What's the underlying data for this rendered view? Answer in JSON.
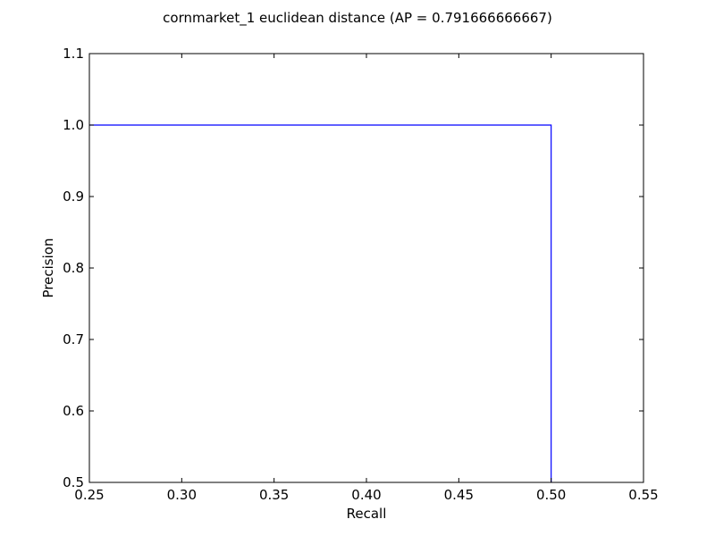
{
  "chart_data": {
    "type": "line",
    "title": "cornmarket_1 euclidean distance  (AP = 0.791666666667)",
    "xlabel": "Recall",
    "ylabel": "Precision",
    "xlim": [
      0.25,
      0.55
    ],
    "ylim": [
      0.5,
      1.1
    ],
    "xticks": [
      "0.25",
      "0.30",
      "0.35",
      "0.40",
      "0.45",
      "0.50",
      "0.55"
    ],
    "yticks": [
      "0.5",
      "0.6",
      "0.7",
      "0.8",
      "0.9",
      "1.0",
      "1.1"
    ],
    "grid": false,
    "series": [
      {
        "color": "#0000ff",
        "x": [
          0.25,
          0.5,
          0.5
        ],
        "y": [
          1.0,
          1.0,
          0.5
        ]
      }
    ]
  }
}
